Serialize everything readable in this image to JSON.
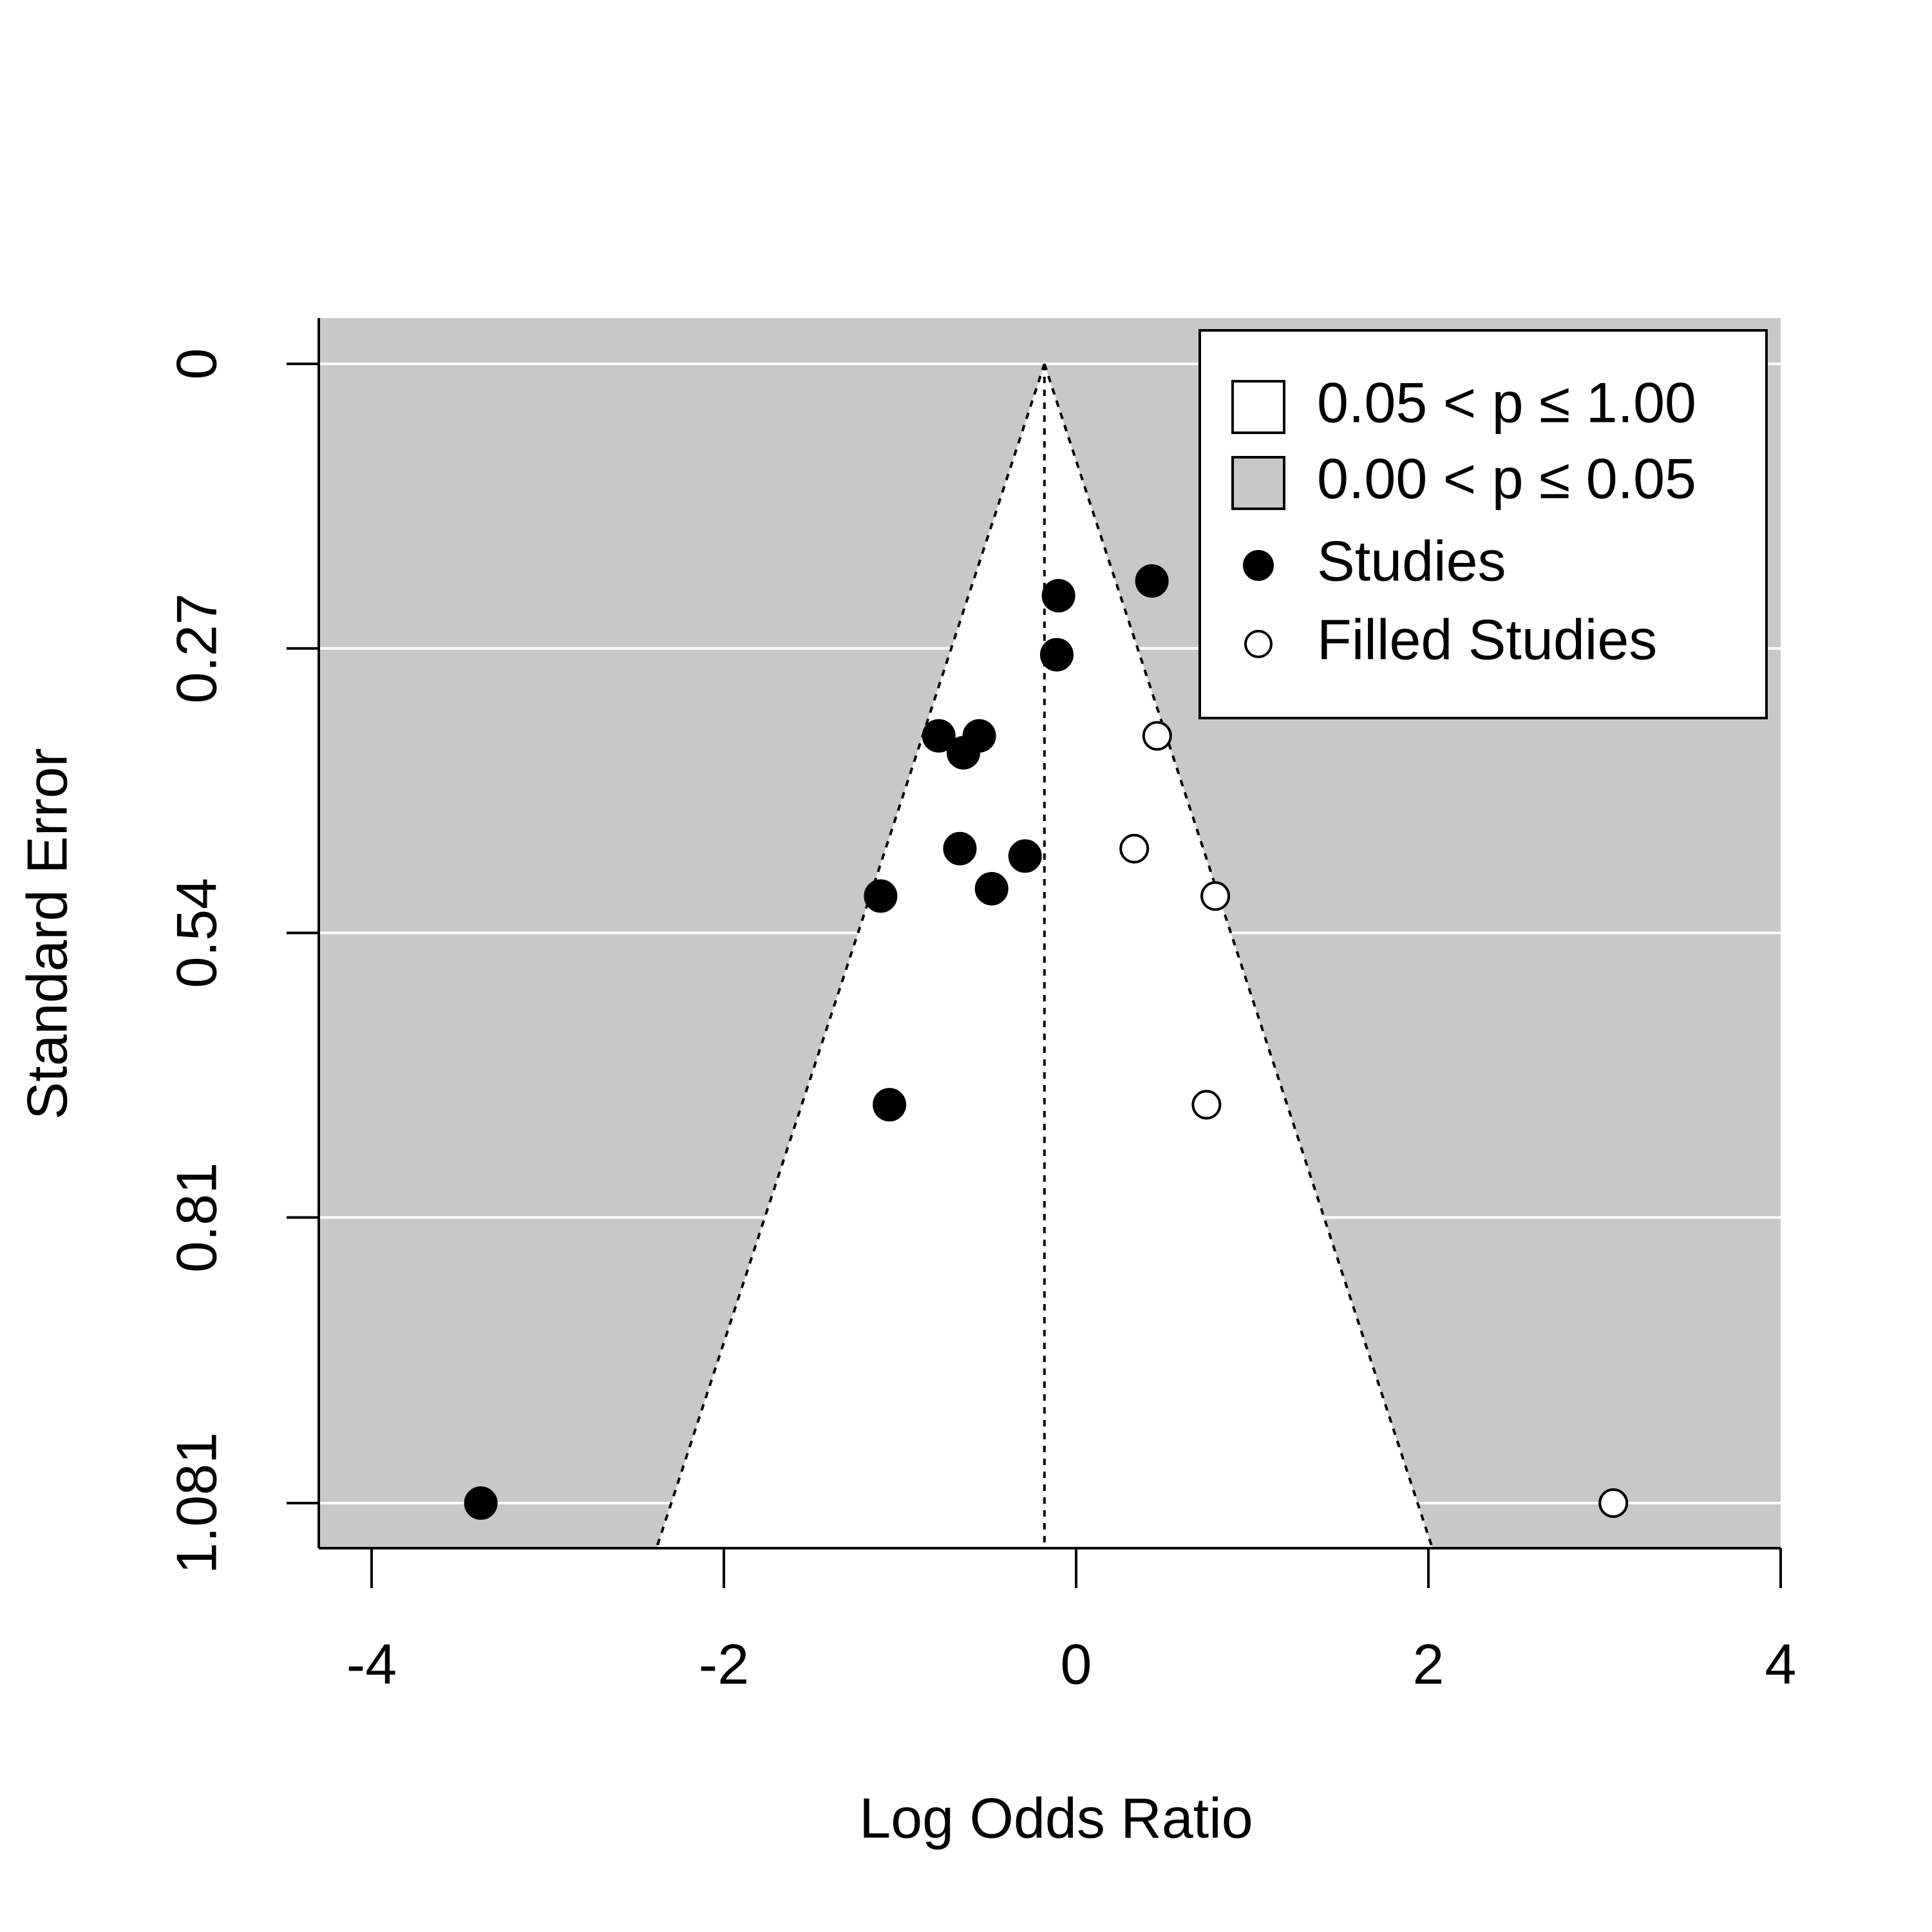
{
  "chart_data": {
    "type": "scatter",
    "subtype": "contour-enhanced funnel plot",
    "xlabel": "Log Odds Ratio",
    "ylabel": "Standard Error",
    "xlim": [
      -4.3,
      4.0
    ],
    "ylim": [
      1.081,
      0
    ],
    "y_reversed": true,
    "xticks": [
      -4,
      -2,
      0,
      2,
      4
    ],
    "xtick_labels": [
      "-4",
      "-2",
      "0",
      "2",
      "4"
    ],
    "yticks": [
      0,
      0.27,
      0.54,
      0.81,
      1.081
    ],
    "ytick_labels": [
      "0",
      "0.27",
      "0.54",
      "0.81",
      "1.081"
    ],
    "grid": "horizontal lines at y ticks",
    "legend_position": "top-right",
    "funnel_center": -0.18,
    "funnel_bottom_se": 1.081,
    "legend": [
      {
        "label": "0.05 < p ≤ 1.00",
        "symbol": "square",
        "fill": "#ffffff"
      },
      {
        "label": "0.00 < p ≤ 0.05",
        "symbol": "square",
        "fill": "#c8c8c8"
      },
      {
        "label": "Studies",
        "symbol": "circle",
        "fill": "#000000"
      },
      {
        "label": "Filled Studies",
        "symbol": "circle",
        "fill": "#ffffff"
      }
    ],
    "series": [
      {
        "name": "Studies",
        "fill": "#000000",
        "points": [
          {
            "x": 0.43,
            "y": 0.206
          },
          {
            "x": -0.1,
            "y": 0.22
          },
          {
            "x": -0.11,
            "y": 0.276
          },
          {
            "x": -0.78,
            "y": 0.353
          },
          {
            "x": -0.55,
            "y": 0.353
          },
          {
            "x": -0.64,
            "y": 0.369
          },
          {
            "x": -0.66,
            "y": 0.46
          },
          {
            "x": -0.29,
            "y": 0.467
          },
          {
            "x": -0.48,
            "y": 0.498
          },
          {
            "x": -1.11,
            "y": 0.505
          },
          {
            "x": -1.06,
            "y": 0.703
          },
          {
            "x": -3.38,
            "y": 1.081
          }
        ]
      },
      {
        "name": "Filled Studies",
        "fill": "#ffffff",
        "points": [
          {
            "x": 0.46,
            "y": 0.353
          },
          {
            "x": 0.33,
            "y": 0.46
          },
          {
            "x": 0.79,
            "y": 0.505
          },
          {
            "x": 0.74,
            "y": 0.703
          },
          {
            "x": 3.05,
            "y": 1.081
          }
        ]
      }
    ],
    "colors": {
      "significant_region": "#c8c8c8",
      "nonsignificant_region": "#ffffff",
      "gridline": "#ffffff",
      "axis": "#000000"
    }
  }
}
